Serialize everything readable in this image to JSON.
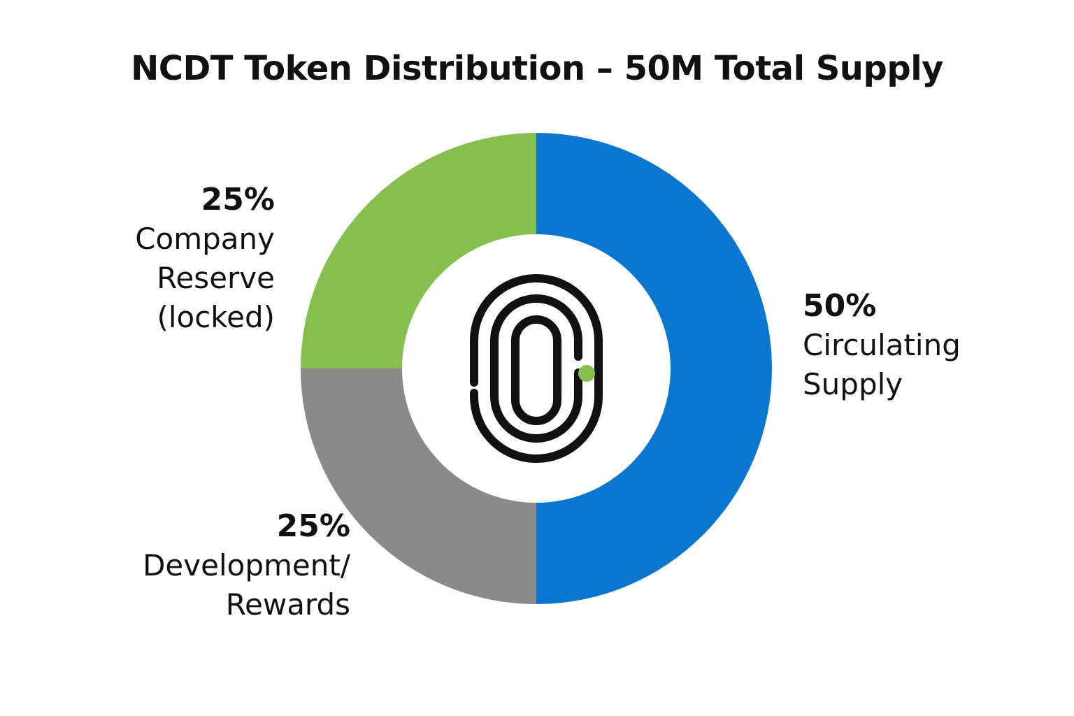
{
  "chart_data": {
    "type": "pie",
    "title": "NCDT Token Distribution – 50M Total Supply",
    "donut": true,
    "center_icon": "fingerprint-icon",
    "slices": [
      {
        "label_lines": [
          "Circulating",
          "Supply"
        ],
        "percent_label": "50%",
        "value": 50,
        "color": "#0b76d0"
      },
      {
        "label_lines": [
          "Development/",
          "Rewards"
        ],
        "percent_label": "25%",
        "value": 25,
        "color": "#8a8a8a"
      },
      {
        "label_lines": [
          "Company",
          "Reserve",
          "(locked)"
        ],
        "percent_label": "25%",
        "value": 25,
        "color": "#86bf4e"
      }
    ]
  },
  "colors": {
    "icon_stroke": "#111111",
    "icon_accent": "#86bf4e",
    "hole": "#ffffff"
  }
}
